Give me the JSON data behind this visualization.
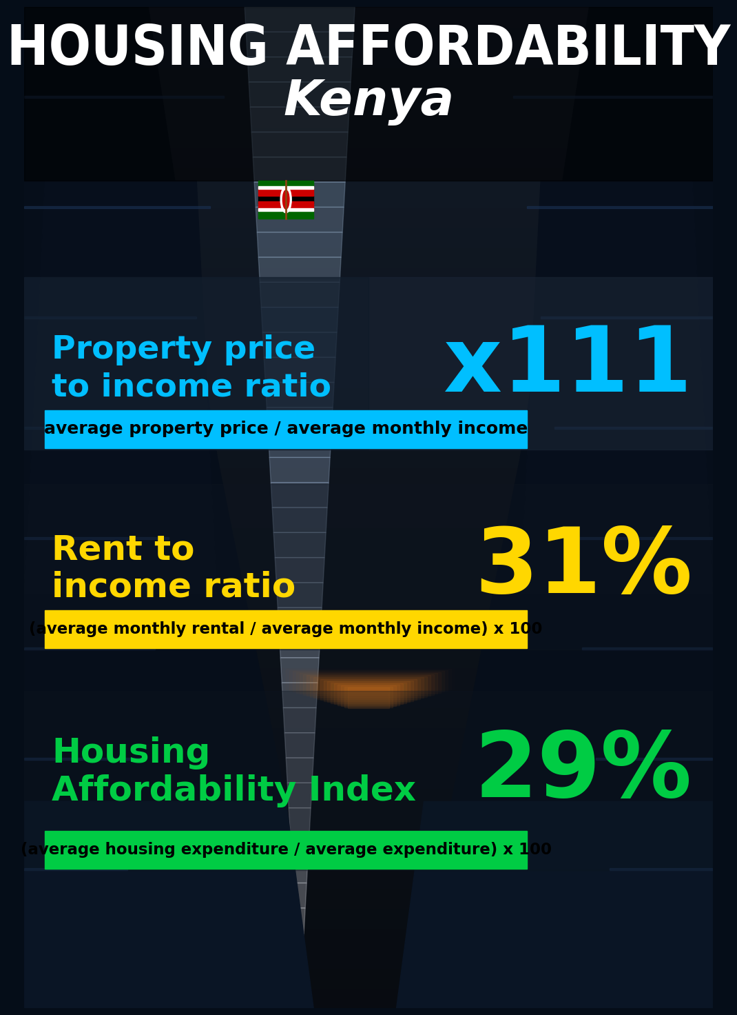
{
  "title_line1": "HOUSING AFFORDABILITY",
  "title_line2": "Kenya",
  "flag_colors": [
    "#006600",
    "#CC0000",
    "#FFFFFF",
    "#000000"
  ],
  "section1_label_line1": "Property price",
  "section1_label_line2": "to income ratio",
  "section1_value": "x111",
  "section1_label_color": "#00BFFF",
  "section1_value_color": "#00BFFF",
  "section1_formula": "average property price / average monthly income",
  "section1_formula_bg": "#00BFFF",
  "section2_label_line1": "Rent to",
  "section2_label_line2": "income ratio",
  "section2_value": "31%",
  "section2_label_color": "#FFD700",
  "section2_value_color": "#FFD700",
  "section2_formula": "(average monthly rental / average monthly income) x 100",
  "section2_formula_bg": "#FFD700",
  "section3_label_line1": "Housing",
  "section3_label_line2": "Affordability Index",
  "section3_value": "29%",
  "section3_label_color": "#00CC44",
  "section3_value_color": "#00CC44",
  "section3_formula": "(average housing expenditure / average expenditure) x 100",
  "section3_formula_bg": "#00CC44",
  "bg_dark": "#050d18",
  "bg_mid": "#0d1e2e",
  "sky_color": "#5ba0c8",
  "sky_bright": "#b0cce0",
  "title_color": "#FFFFFF",
  "formula_text_color": "#000000",
  "building_dark": "#060e1a",
  "building_mid": "#0a1525",
  "warm_glow": "#c87020"
}
